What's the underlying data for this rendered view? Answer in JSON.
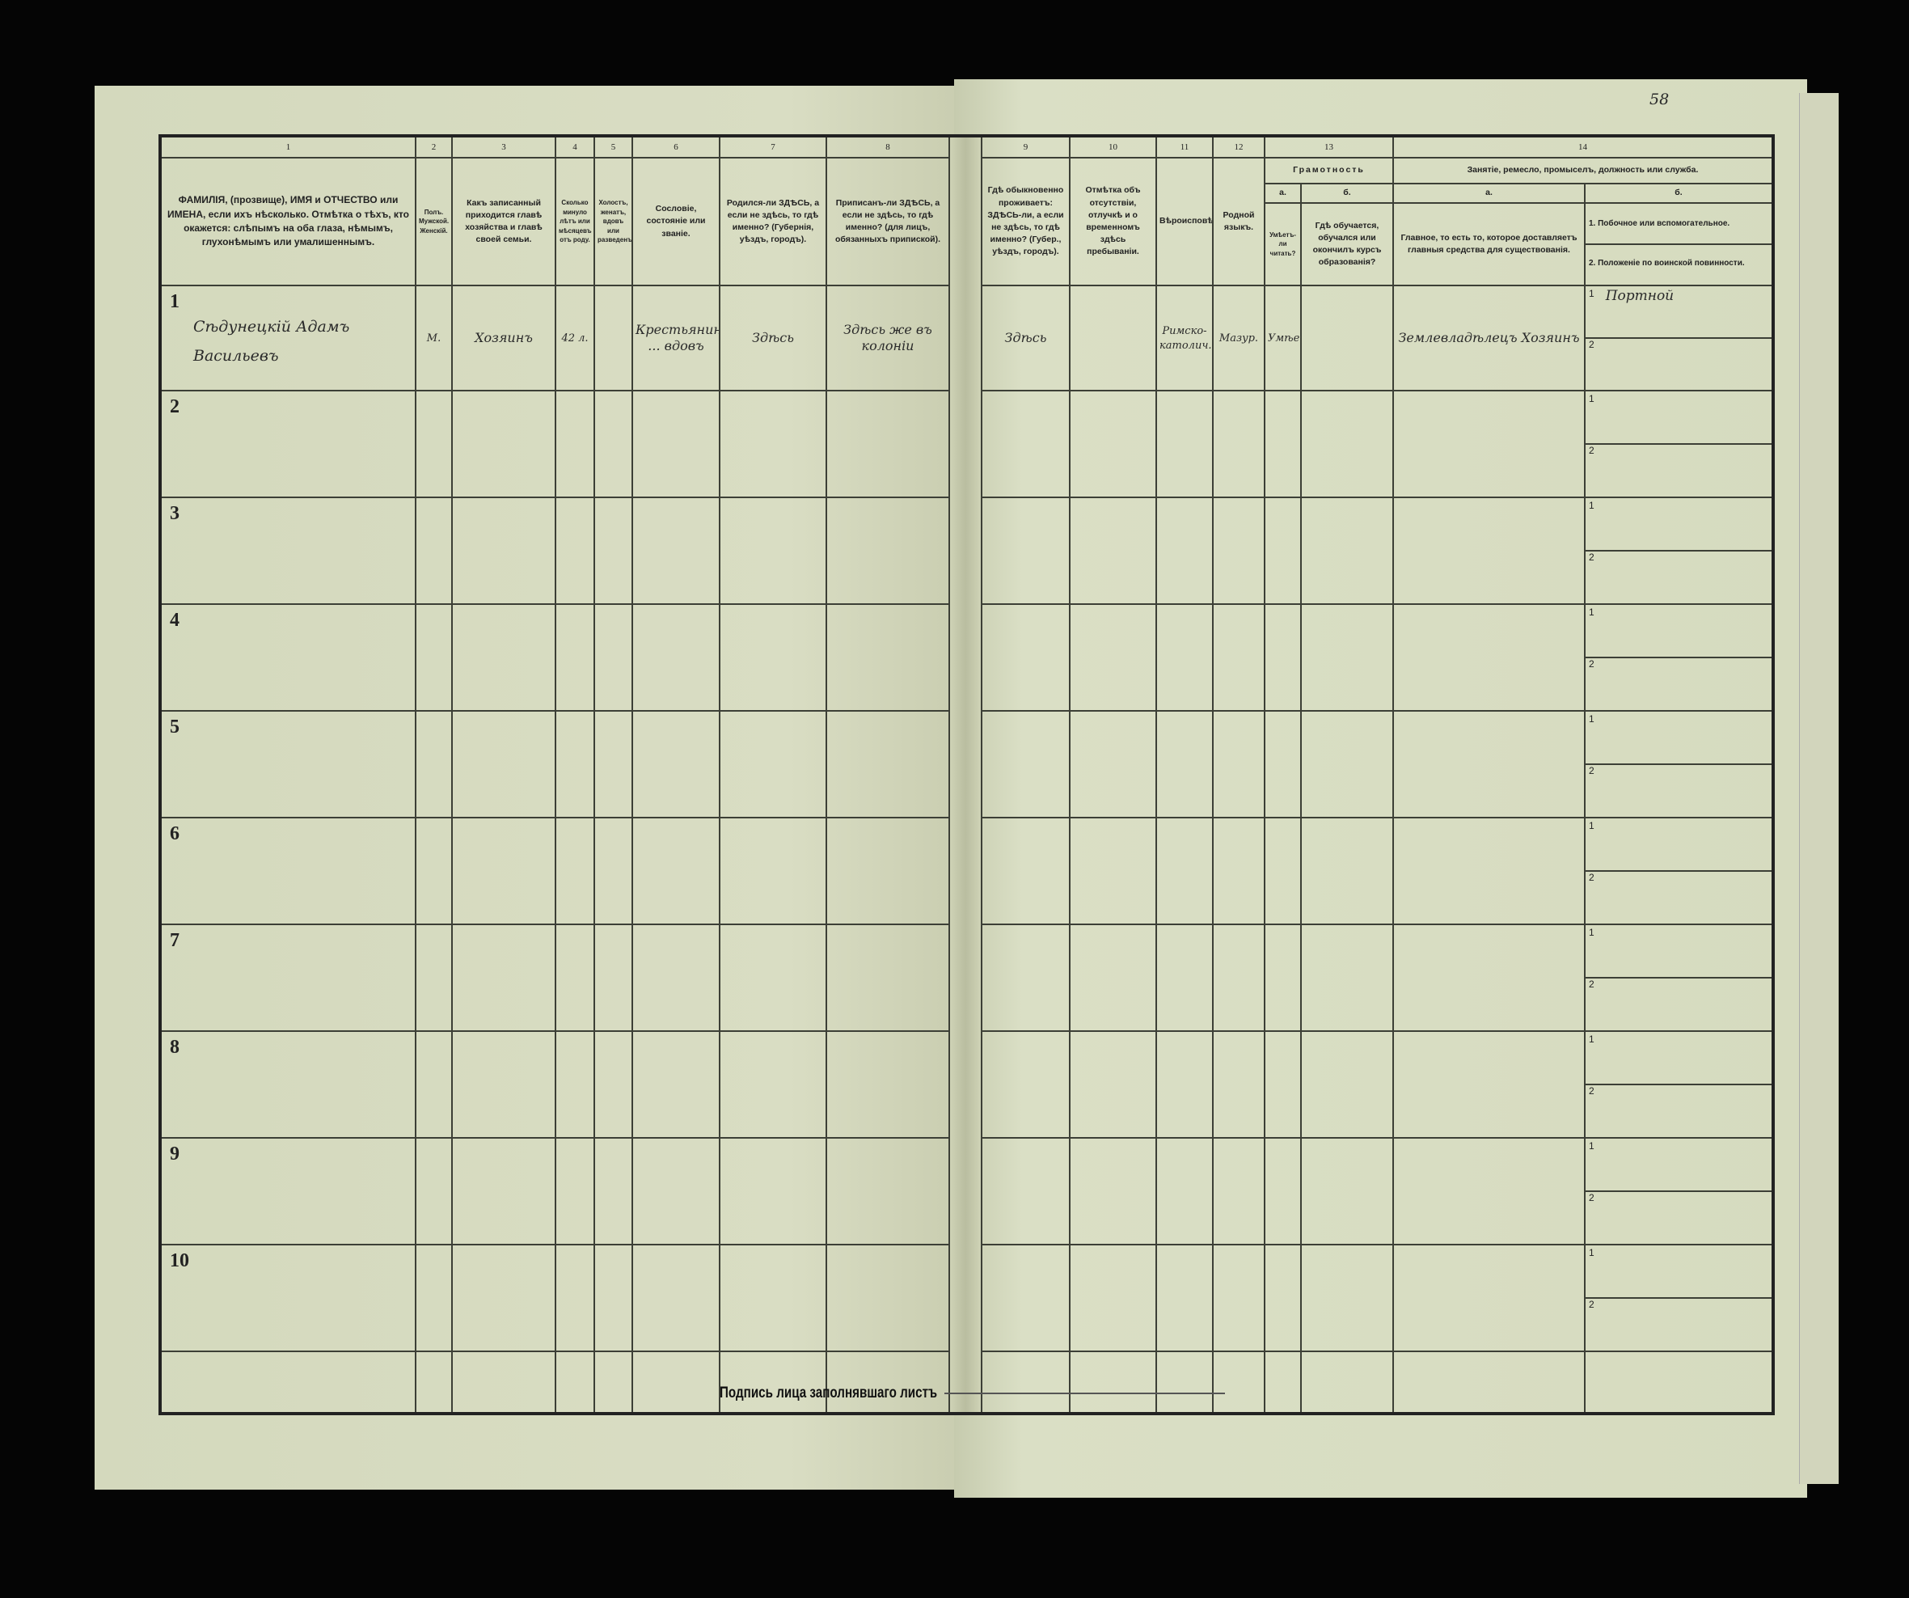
{
  "page_number": "58",
  "header": {
    "numbers": [
      "1",
      "2",
      "3",
      "4",
      "5",
      "6",
      "7",
      "8",
      "9",
      "10",
      "11",
      "12",
      "13",
      "14"
    ],
    "col1": "ФАМИЛІЯ, (прозвище), ИМЯ и ОТЧЕСТВО или ИМЕНА, если ихъ нѣсколько. Отмѣтка о тѣхъ, кто окажется: слѣпымъ на оба глаза, нѣмымъ, глухонѣмымъ или умалишеннымъ.",
    "col2": "Полъ. Мужской. Женскій.",
    "col3": "Какъ записанный приходится главѣ хозяйства и главѣ своей семьи.",
    "col4": "Сколько минуло лѣтъ или мѣсяцевъ отъ роду.",
    "col5": "Холостъ, женатъ, вдовъ или разведенъ",
    "col6": "Сословіе, состояніе или званіе.",
    "col7": "Родился-ли ЗДѢСЬ, а если не здѣсь, то гдѣ именно? (Губернія, уѣздъ, городъ).",
    "col8": "Приписанъ-ли ЗДѢСЬ, а если не здѣсь, то гдѣ именно? (для лицъ, обязанныхъ припиской).",
    "col9": "Гдѣ обыкновенно проживаетъ: ЗДѢСЬ-ли, а если не здѣсь, то гдѣ именно? (Губер., уѣздъ, городъ).",
    "col10": "Отмѣтка объ отсутствіи, отлучкѣ и о временномъ здѣсь пребываніи.",
    "col11": "Вѣроисповѣданіе.",
    "col12": "Родной языкъ.",
    "col13": "Грамотность",
    "col13a_letter": "а.",
    "col13b_letter": "б.",
    "col13a": "Умѣетъ-ли читать?",
    "col13b": "Гдѣ обучается, обучался или окончилъ курсъ образованія?",
    "col14": "Занятіе, ремесло, промыселъ, должность или служба.",
    "col14a_letter": "а.",
    "col14b_letter": "б.",
    "col14a": "Главное, то есть то, которое доставляетъ главныя средства для существованія.",
    "col14b_1": "1. Побочное или вспомогательное.",
    "col14b_2": "2. Положеніе по воинской повинности."
  },
  "rows": [
    {
      "num": "1",
      "name": "Сѣдунецкій Адамъ Васильевъ",
      "sex": "М.",
      "relation": "Хозяинъ",
      "age": "42 л.",
      "marital": "",
      "estate": "Крестьянинъ ... вдовъ",
      "born": "Здѣсь",
      "registered": "Здѣсь же въ колоніи",
      "residence": "Здѣсь",
      "absence": "",
      "religion": "Римско-католич.",
      "language": "Мазур.",
      "literate": "Умѣетъ",
      "education": "",
      "occupation_main": "Землевладѣлецъ Хозяинъ",
      "occupation_side": "Портной",
      "military": ""
    },
    {
      "num": "2"
    },
    {
      "num": "3"
    },
    {
      "num": "4"
    },
    {
      "num": "5"
    },
    {
      "num": "6"
    },
    {
      "num": "7"
    },
    {
      "num": "8"
    },
    {
      "num": "9"
    },
    {
      "num": "10"
    }
  ],
  "sub_labels": [
    "1",
    "2"
  ],
  "footer": {
    "signature_label": "Подпись лица заполнявшаго листъ"
  },
  "colors": {
    "paper": "#d6dbbf",
    "ink": "#222222",
    "background": "#050505"
  }
}
